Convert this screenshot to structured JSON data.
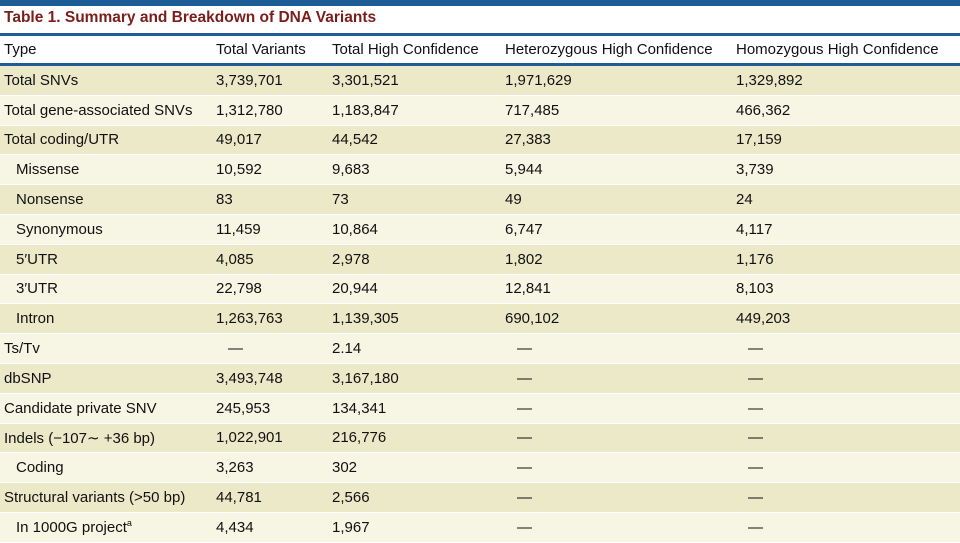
{
  "title": "Table 1.  Summary and Breakdown of DNA Variants",
  "colors": {
    "title": "#7a1e1a",
    "rule": "#1d5c96",
    "row_a": "#ece9c9",
    "row_b": "#f7f5e3"
  },
  "columns": [
    "Type",
    "Total Variants",
    "Total High Confidence",
    "Heterozygous High Confidence",
    "Homozygous High Confidence"
  ],
  "rows": [
    {
      "type": "Total SNVs",
      "indent": false,
      "values": [
        "3,739,701",
        "3,301,521",
        "1,971,629",
        "1,329,892"
      ]
    },
    {
      "type": "Total gene-associated SNVs",
      "indent": false,
      "values": [
        "1,312,780",
        "1,183,847",
        "717,485",
        "466,362"
      ]
    },
    {
      "type": "Total coding/UTR",
      "indent": false,
      "values": [
        "49,017",
        "44,542",
        "27,383",
        "17,159"
      ]
    },
    {
      "type": "Missense",
      "indent": true,
      "values": [
        "10,592",
        "9,683",
        "5,944",
        "3,739"
      ]
    },
    {
      "type": "Nonsense",
      "indent": true,
      "values": [
        "83",
        "73",
        "49",
        "24"
      ]
    },
    {
      "type": "Synonymous",
      "indent": true,
      "values": [
        "11,459",
        "10,864",
        "6,747",
        "4,117"
      ]
    },
    {
      "type": "5′UTR",
      "indent": true,
      "values": [
        "4,085",
        "2,978",
        "1,802",
        "1,176"
      ]
    },
    {
      "type": "3′UTR",
      "indent": true,
      "values": [
        "22,798",
        "20,944",
        "12,841",
        "8,103"
      ]
    },
    {
      "type": "Intron",
      "indent": true,
      "values": [
        "1,263,763",
        "1,139,305",
        "690,102",
        "449,203"
      ]
    },
    {
      "type": "Ts/Tv",
      "indent": false,
      "values": [
        "—",
        "2.14",
        "—",
        "—"
      ]
    },
    {
      "type": "dbSNP",
      "indent": false,
      "values": [
        "3,493,748",
        "3,167,180",
        "—",
        "—"
      ]
    },
    {
      "type": "Candidate private SNV",
      "indent": false,
      "values": [
        "245,953",
        "134,341",
        "—",
        "—"
      ]
    },
    {
      "type": "Indels (−107∼ +36 bp)",
      "indent": false,
      "values": [
        "1,022,901",
        "216,776",
        "—",
        "—"
      ]
    },
    {
      "type": "Coding",
      "indent": true,
      "values": [
        "3,263",
        "302",
        "—",
        "—"
      ]
    },
    {
      "type": "Structural variants (>50 bp)",
      "indent": false,
      "values": [
        "44,781",
        "2,566",
        "—",
        "—"
      ]
    },
    {
      "type": "In 1000G project",
      "indent": true,
      "sup": "a",
      "values": [
        "4,434",
        "1,967",
        "—",
        "—"
      ]
    }
  ]
}
